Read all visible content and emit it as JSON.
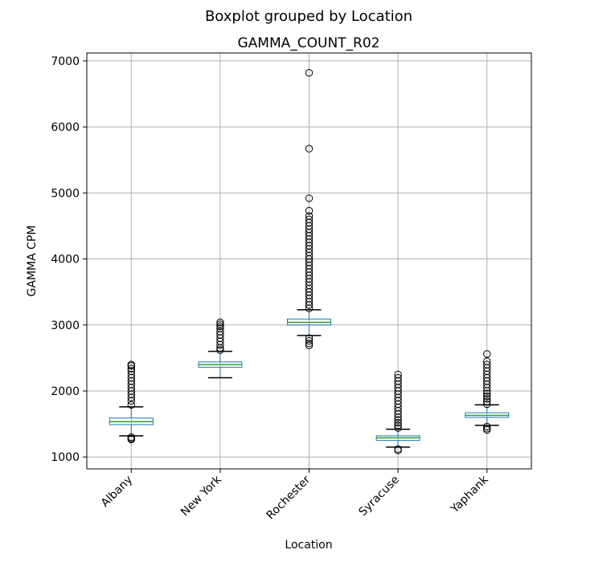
{
  "chart_data": {
    "type": "box",
    "suptitle": "Boxplot grouped by Location",
    "title": "GAMMA_COUNT_R02",
    "xlabel": "Location",
    "ylabel": "GAMMA CPM",
    "ylim": [
      820,
      7120
    ],
    "yticks": [
      1000,
      2000,
      3000,
      4000,
      5000,
      6000,
      7000
    ],
    "grid": true,
    "categories": [
      "Albany",
      "New York",
      "Rochester",
      "Syracuse",
      "Yaphank"
    ],
    "boxes": [
      {
        "category": "Albany",
        "whisker_low": 1320,
        "q1": 1490,
        "median": 1535,
        "q3": 1590,
        "whisker_high": 1760,
        "outliers_high": [
          1790,
          1850,
          1900,
          1950,
          2000,
          2050,
          2100,
          2150,
          2200,
          2250,
          2300,
          2340,
          2380,
          2400
        ],
        "outliers_low": [
          1300,
          1280,
          1265
        ]
      },
      {
        "category": "New York",
        "whisker_low": 2200,
        "q1": 2360,
        "median": 2400,
        "q3": 2440,
        "whisker_high": 2600,
        "outliers_high": [
          2620,
          2650,
          2700,
          2750,
          2800,
          2850,
          2900,
          2950,
          2980,
          3010,
          3040
        ],
        "outliers_low": []
      },
      {
        "category": "Rochester",
        "whisker_low": 2840,
        "q1": 3000,
        "median": 3040,
        "q3": 3090,
        "whisker_high": 3230,
        "outliers_high": [
          3250,
          3300,
          3350,
          3400,
          3450,
          3500,
          3550,
          3600,
          3650,
          3700,
          3750,
          3800,
          3850,
          3900,
          3950,
          4000,
          4050,
          4100,
          4150,
          4200,
          4250,
          4300,
          4350,
          4400,
          4450,
          4500,
          4550,
          4600,
          4650,
          4730,
          4920,
          5670,
          6820
        ],
        "outliers_low": [
          2800,
          2760,
          2720,
          2690
        ]
      },
      {
        "category": "Syracuse",
        "whisker_low": 1150,
        "q1": 1250,
        "median": 1290,
        "q3": 1320,
        "whisker_high": 1420,
        "outliers_high": [
          1440,
          1480,
          1520,
          1560,
          1600,
          1650,
          1700,
          1750,
          1800,
          1850,
          1900,
          1950,
          2000,
          2050,
          2100,
          2150,
          2200,
          2250
        ],
        "outliers_low": [
          1120,
          1100
        ]
      },
      {
        "category": "Yaphank",
        "whisker_low": 1480,
        "q1": 1600,
        "median": 1630,
        "q3": 1670,
        "whisker_high": 1790,
        "outliers_high": [
          1800,
          1840,
          1880,
          1920,
          1960,
          2000,
          2050,
          2100,
          2150,
          2200,
          2250,
          2300,
          2350,
          2400,
          2450,
          2560
        ],
        "outliers_low": [
          1460,
          1430,
          1410
        ]
      }
    ],
    "colors": {
      "box": "#1f77b4",
      "median": "#2ca02c",
      "whisker": "#000000",
      "grid": "#b0b0b0",
      "outlier": "#000000"
    }
  }
}
